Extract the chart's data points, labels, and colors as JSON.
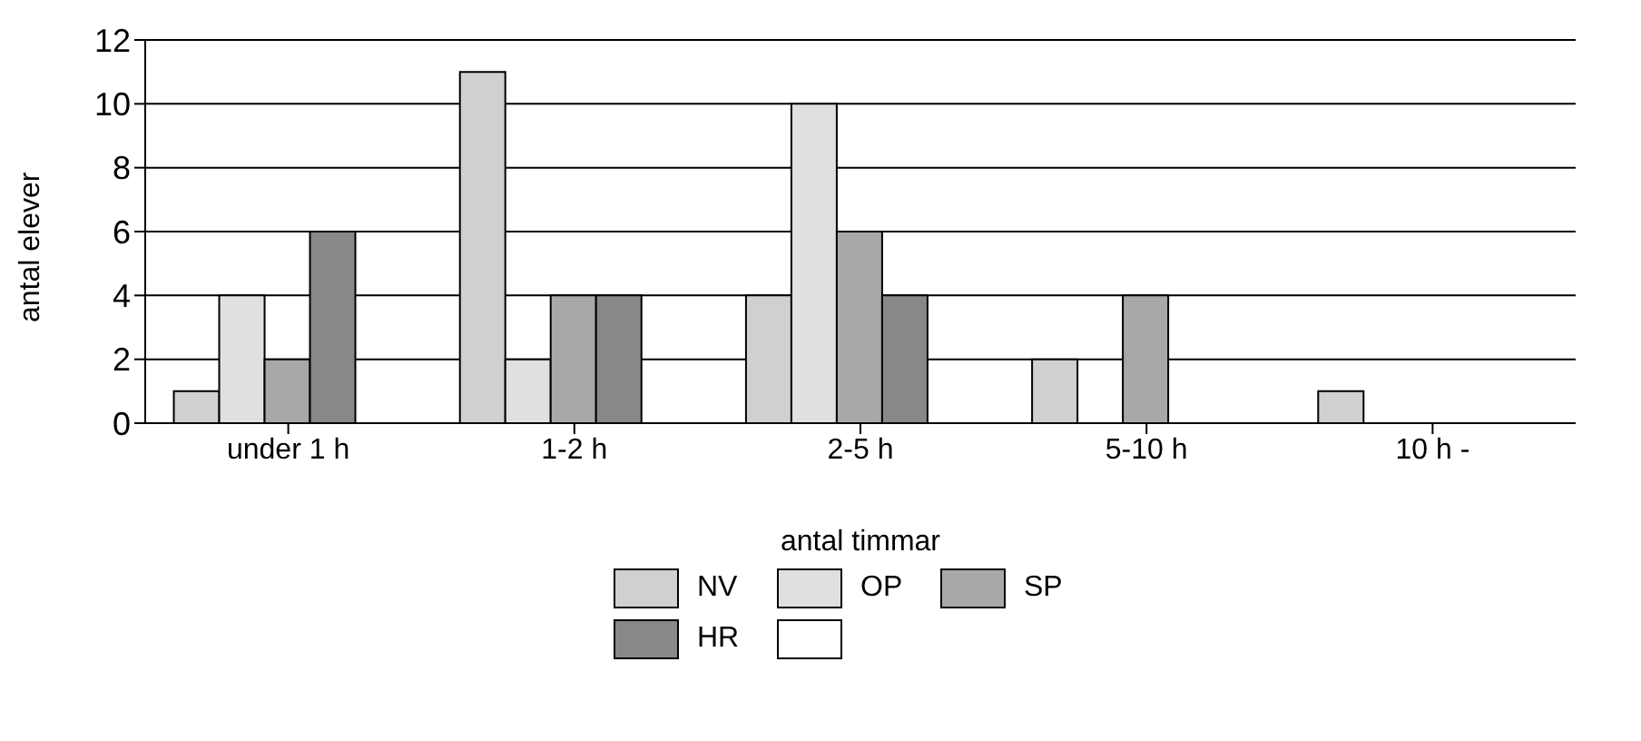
{
  "chart_data": {
    "type": "bar",
    "xlabel": "antal timmar",
    "ylabel": "antal elever",
    "categories": [
      "under 1 h",
      "1-2 h",
      "2-5 h",
      "5-10 h",
      "10 h -"
    ],
    "series": [
      {
        "name": "NV",
        "color": "#d0d0d0",
        "values": [
          1,
          11,
          4,
          2,
          1
        ]
      },
      {
        "name": "OP",
        "color": "#e0e0e0",
        "values": [
          4,
          2,
          10,
          0,
          0
        ]
      },
      {
        "name": "SP",
        "color": "#a8a8a8",
        "values": [
          2,
          4,
          6,
          4,
          0
        ]
      },
      {
        "name": "HR",
        "color": "#888888",
        "values": [
          6,
          4,
          4,
          0,
          0
        ]
      },
      {
        "color": "#ffffff",
        "values": [
          0,
          0,
          0,
          0,
          0
        ]
      }
    ],
    "ylim": [
      0,
      12
    ],
    "yticks": [
      0,
      2,
      4,
      6,
      8,
      10,
      12
    ],
    "grid": "y",
    "legend": "bottom"
  }
}
